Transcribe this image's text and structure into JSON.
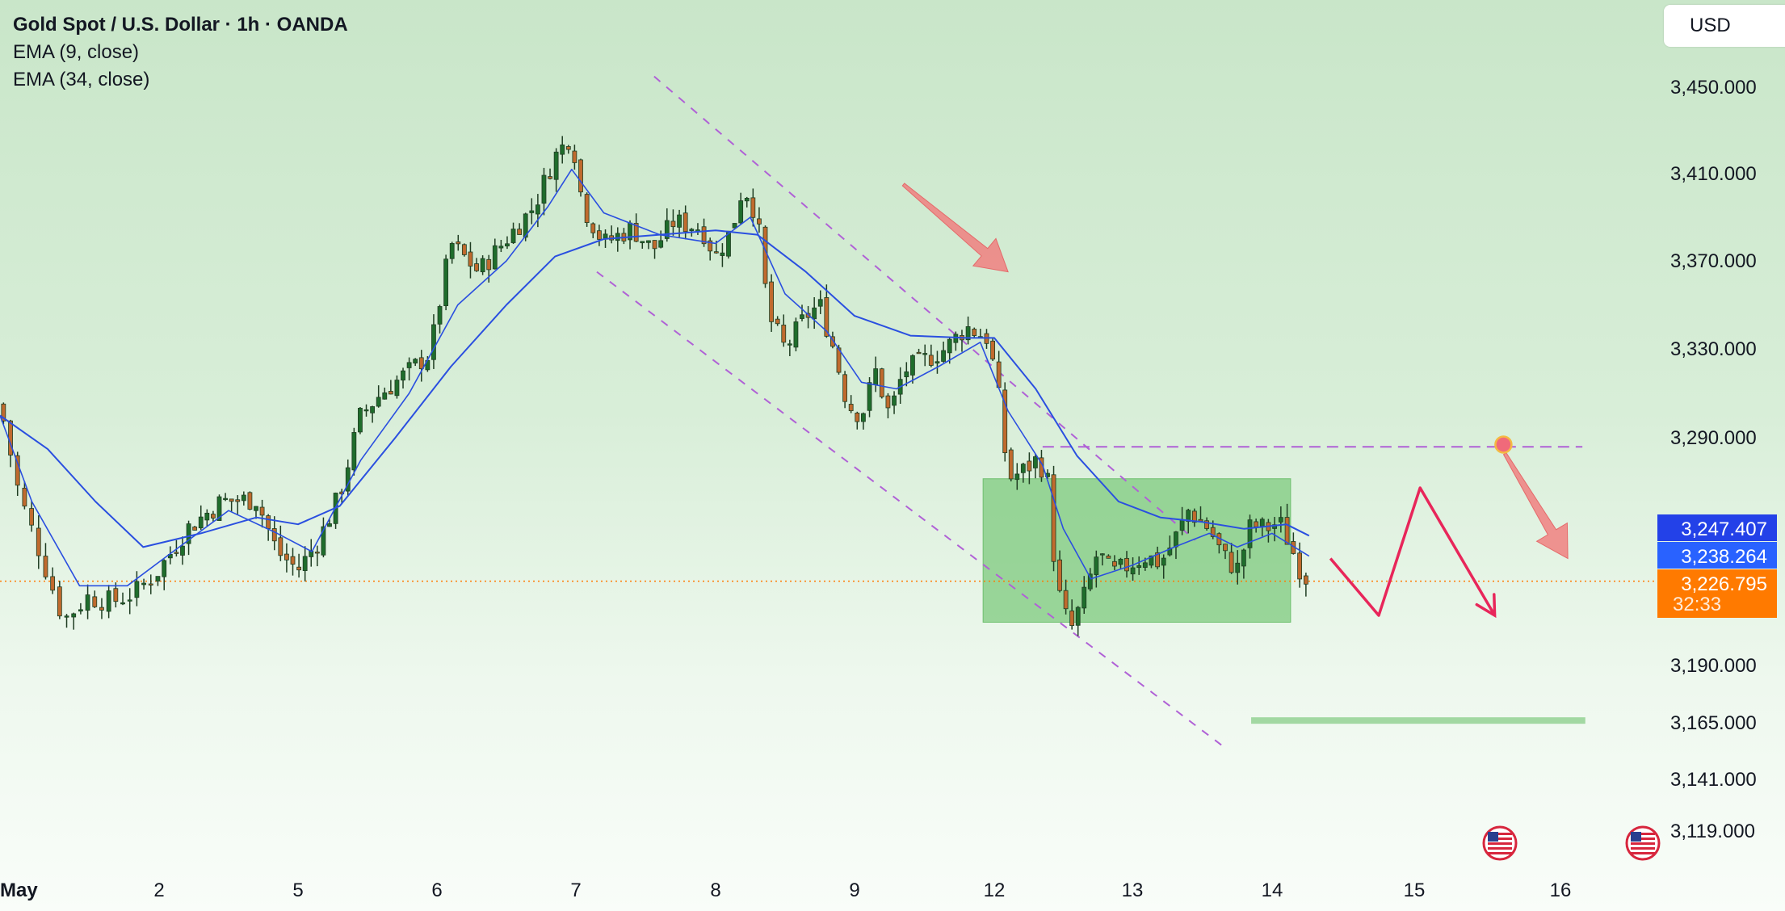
{
  "legend": {
    "title": "Gold Spot / U.S. Dollar · 1h · OANDA",
    "indicators": [
      "EMA (9, close)",
      "EMA (34, close)"
    ]
  },
  "currency_button": "USD",
  "colors": {
    "up": "#1f6d2c",
    "down": "#c06a2e",
    "wick": "#1f3d22",
    "ema_fast": "#2a4fe0",
    "ema_slow": "#2a4fe0",
    "channel": "#b061d6",
    "zone": "#7dc97d",
    "arrow_red": "#f08080",
    "path_red": "#e8265a",
    "price_orange": "#ff7a00",
    "ema_badge": "#2962ff"
  },
  "chart_data": {
    "type": "candlestick",
    "title": "Gold Spot / U.S. Dollar · 1h · OANDA",
    "x_ticks": [
      {
        "label": "May",
        "day": 1
      },
      {
        "label": "2",
        "day": 2
      },
      {
        "label": "5",
        "day": 3
      },
      {
        "label": "6",
        "day": 4
      },
      {
        "label": "7",
        "day": 5
      },
      {
        "label": "8",
        "day": 6
      },
      {
        "label": "9",
        "day": 7
      },
      {
        "label": "12",
        "day": 8
      },
      {
        "label": "13",
        "day": 9
      },
      {
        "label": "14",
        "day": 10
      },
      {
        "label": "15",
        "day": 11
      },
      {
        "label": "16",
        "day": 12
      }
    ],
    "y_ticks": [
      "3,450.000",
      "3,410.000",
      "3,370.000",
      "3,330.000",
      "3,290.000",
      "3,190.000",
      "3,165.000",
      "3,141.000",
      "3,119.000"
    ],
    "price_labels": {
      "ema_34": "3,247.407",
      "ema_9": "3,238.264",
      "last_price": "3,226.795",
      "countdown": "32:33"
    },
    "close_path": [
      {
        "day": 1.0,
        "price": 3305
      },
      {
        "day": 1.12,
        "price": 3265
      },
      {
        "day": 1.25,
        "price": 3240
      },
      {
        "day": 1.4,
        "price": 3210
      },
      {
        "day": 1.55,
        "price": 3220
      },
      {
        "day": 1.7,
        "price": 3218
      },
      {
        "day": 1.85,
        "price": 3222
      },
      {
        "day": 2.0,
        "price": 3232
      },
      {
        "day": 2.2,
        "price": 3250
      },
      {
        "day": 2.45,
        "price": 3262
      },
      {
        "day": 2.7,
        "price": 3263
      },
      {
        "day": 2.85,
        "price": 3240
      },
      {
        "day": 3.0,
        "price": 3232
      },
      {
        "day": 3.15,
        "price": 3245
      },
      {
        "day": 3.3,
        "price": 3265
      },
      {
        "day": 3.45,
        "price": 3300
      },
      {
        "day": 3.6,
        "price": 3310
      },
      {
        "day": 3.8,
        "price": 3320
      },
      {
        "day": 3.95,
        "price": 3328
      },
      {
        "day": 4.1,
        "price": 3378
      },
      {
        "day": 4.3,
        "price": 3365
      },
      {
        "day": 4.5,
        "price": 3380
      },
      {
        "day": 4.7,
        "price": 3395
      },
      {
        "day": 4.85,
        "price": 3418
      },
      {
        "day": 4.97,
        "price": 3428
      },
      {
        "day": 5.05,
        "price": 3395
      },
      {
        "day": 5.2,
        "price": 3378
      },
      {
        "day": 5.4,
        "price": 3385
      },
      {
        "day": 5.55,
        "price": 3375
      },
      {
        "day": 5.7,
        "price": 3388
      },
      {
        "day": 5.9,
        "price": 3385
      },
      {
        "day": 6.0,
        "price": 3372
      },
      {
        "day": 6.12,
        "price": 3385
      },
      {
        "day": 6.2,
        "price": 3405
      },
      {
        "day": 6.3,
        "price": 3390
      },
      {
        "day": 6.38,
        "price": 3345
      },
      {
        "day": 6.5,
        "price": 3330
      },
      {
        "day": 6.65,
        "price": 3345
      },
      {
        "day": 6.75,
        "price": 3350
      },
      {
        "day": 6.85,
        "price": 3330
      },
      {
        "day": 6.95,
        "price": 3305
      },
      {
        "day": 7.05,
        "price": 3300
      },
      {
        "day": 7.15,
        "price": 3320
      },
      {
        "day": 7.25,
        "price": 3300
      },
      {
        "day": 7.35,
        "price": 3320
      },
      {
        "day": 7.5,
        "price": 3325
      },
      {
        "day": 7.65,
        "price": 3330
      },
      {
        "day": 7.8,
        "price": 3340
      },
      {
        "day": 7.95,
        "price": 3335
      },
      {
        "day": 8.02,
        "price": 3315
      },
      {
        "day": 8.1,
        "price": 3272
      },
      {
        "day": 8.2,
        "price": 3275
      },
      {
        "day": 8.3,
        "price": 3280
      },
      {
        "day": 8.38,
        "price": 3275
      },
      {
        "day": 8.45,
        "price": 3225
      },
      {
        "day": 8.55,
        "price": 3205
      },
      {
        "day": 8.65,
        "price": 3220
      },
      {
        "day": 8.75,
        "price": 3240
      },
      {
        "day": 8.85,
        "price": 3230
      },
      {
        "day": 9.0,
        "price": 3235
      },
      {
        "day": 9.1,
        "price": 3238
      },
      {
        "day": 9.2,
        "price": 3235
      },
      {
        "day": 9.3,
        "price": 3245
      },
      {
        "day": 9.4,
        "price": 3258
      },
      {
        "day": 9.55,
        "price": 3250
      },
      {
        "day": 9.65,
        "price": 3238
      },
      {
        "day": 9.75,
        "price": 3232
      },
      {
        "day": 9.85,
        "price": 3252
      },
      {
        "day": 9.95,
        "price": 3250
      },
      {
        "day": 10.05,
        "price": 3253
      },
      {
        "day": 10.12,
        "price": 3244
      },
      {
        "day": 10.2,
        "price": 3232
      },
      {
        "day": 10.26,
        "price": 3227
      }
    ],
    "ema_9": [
      {
        "day": 1.0,
        "price": 3300
      },
      {
        "day": 1.2,
        "price": 3262
      },
      {
        "day": 1.5,
        "price": 3225
      },
      {
        "day": 1.8,
        "price": 3225
      },
      {
        "day": 2.1,
        "price": 3240
      },
      {
        "day": 2.5,
        "price": 3258
      },
      {
        "day": 2.85,
        "price": 3248
      },
      {
        "day": 3.1,
        "price": 3240
      },
      {
        "day": 3.45,
        "price": 3280
      },
      {
        "day": 3.8,
        "price": 3310
      },
      {
        "day": 4.15,
        "price": 3350
      },
      {
        "day": 4.5,
        "price": 3370
      },
      {
        "day": 4.8,
        "price": 3395
      },
      {
        "day": 4.97,
        "price": 3412
      },
      {
        "day": 5.2,
        "price": 3392
      },
      {
        "day": 5.6,
        "price": 3382
      },
      {
        "day": 6.0,
        "price": 3378
      },
      {
        "day": 6.25,
        "price": 3390
      },
      {
        "day": 6.5,
        "price": 3355
      },
      {
        "day": 6.8,
        "price": 3338
      },
      {
        "day": 7.05,
        "price": 3315
      },
      {
        "day": 7.3,
        "price": 3312
      },
      {
        "day": 7.6,
        "price": 3322
      },
      {
        "day": 7.9,
        "price": 3333
      },
      {
        "day": 8.1,
        "price": 3302
      },
      {
        "day": 8.35,
        "price": 3278
      },
      {
        "day": 8.5,
        "price": 3250
      },
      {
        "day": 8.7,
        "price": 3228
      },
      {
        "day": 9.0,
        "price": 3234
      },
      {
        "day": 9.3,
        "price": 3242
      },
      {
        "day": 9.55,
        "price": 3248
      },
      {
        "day": 9.75,
        "price": 3242
      },
      {
        "day": 10.0,
        "price": 3248
      },
      {
        "day": 10.26,
        "price": 3238
      }
    ],
    "ema_34": [
      {
        "day": 1.0,
        "price": 3300
      },
      {
        "day": 1.3,
        "price": 3285
      },
      {
        "day": 1.6,
        "price": 3262
      },
      {
        "day": 1.9,
        "price": 3242
      },
      {
        "day": 2.3,
        "price": 3248
      },
      {
        "day": 2.7,
        "price": 3255
      },
      {
        "day": 3.0,
        "price": 3252
      },
      {
        "day": 3.3,
        "price": 3260
      },
      {
        "day": 3.7,
        "price": 3290
      },
      {
        "day": 4.1,
        "price": 3322
      },
      {
        "day": 4.5,
        "price": 3350
      },
      {
        "day": 4.85,
        "price": 3372
      },
      {
        "day": 5.2,
        "price": 3380
      },
      {
        "day": 5.6,
        "price": 3382
      },
      {
        "day": 6.0,
        "price": 3384
      },
      {
        "day": 6.3,
        "price": 3382
      },
      {
        "day": 6.65,
        "price": 3365
      },
      {
        "day": 7.0,
        "price": 3345
      },
      {
        "day": 7.4,
        "price": 3336
      },
      {
        "day": 7.8,
        "price": 3335
      },
      {
        "day": 8.0,
        "price": 3335
      },
      {
        "day": 8.3,
        "price": 3312
      },
      {
        "day": 8.6,
        "price": 3282
      },
      {
        "day": 8.9,
        "price": 3262
      },
      {
        "day": 9.2,
        "price": 3255
      },
      {
        "day": 9.5,
        "price": 3253
      },
      {
        "day": 9.8,
        "price": 3250
      },
      {
        "day": 10.1,
        "price": 3252
      },
      {
        "day": 10.26,
        "price": 3247
      }
    ],
    "annotations": {
      "channel_upper": [
        {
          "day": 5.56,
          "price": 3455
        },
        {
          "day": 9.45,
          "price": 3245
        }
      ],
      "channel_lower": [
        {
          "day": 5.15,
          "price": 3365
        },
        {
          "day": 9.65,
          "price": 3155
        }
      ],
      "resistance_dashed": {
        "from_day": 8.35,
        "to_day": 12.15,
        "price": 3286
      },
      "range_box": {
        "from_day": 7.92,
        "to_day": 10.13,
        "top": 3272,
        "bottom": 3209
      },
      "target_line": {
        "from_day": 9.85,
        "to_day": 12.17,
        "price": 3166
      },
      "last_price_line": 3227,
      "marker_point": {
        "day": 11.61,
        "price": 3287
      },
      "projection_zigzag": [
        {
          "day": 10.41,
          "price": 3237
        },
        {
          "day": 10.75,
          "price": 3212
        },
        {
          "day": 11.04,
          "price": 3268
        },
        {
          "day": 11.55,
          "price": 3212
        }
      ],
      "arrow_top": [
        {
          "day": 7.35,
          "price": 3405
        },
        {
          "day": 8.1,
          "price": 3365
        }
      ],
      "arrow_right": [
        {
          "day": 11.62,
          "price": 3283
        },
        {
          "day": 12.05,
          "price": 3237
        }
      ]
    },
    "ylim": [
      3110,
      3470
    ],
    "xlim": [
      1.0,
      12.49
    ]
  }
}
